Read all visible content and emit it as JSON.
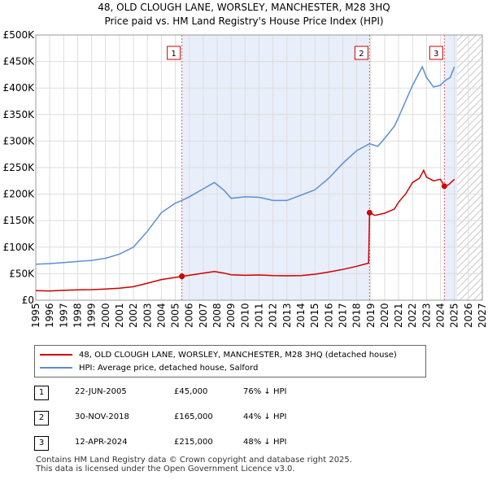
{
  "header": {
    "title_line1": "48, OLD CLOUGH LANE, WORSLEY, MANCHESTER, M28 3HQ",
    "title_line2": "Price paid vs. HM Land Registry's House Price Index (HPI)"
  },
  "chart_data": {
    "type": "line",
    "title": "48, OLD CLOUGH LANE, WORSLEY, MANCHESTER, M28 3HQ — Price paid vs. HM Land Registry's House Price Index (HPI)",
    "xlabel": "",
    "ylabel": "",
    "xlim": [
      1995,
      2027
    ],
    "ylim": [
      0,
      500000
    ],
    "x_ticks": [
      1995,
      1996,
      1997,
      1998,
      1999,
      2000,
      2001,
      2002,
      2003,
      2004,
      2005,
      2006,
      2007,
      2008,
      2009,
      2010,
      2011,
      2012,
      2013,
      2014,
      2015,
      2016,
      2017,
      2018,
      2019,
      2020,
      2021,
      2022,
      2023,
      2024,
      2025,
      2026,
      2027
    ],
    "y_ticks": [
      0,
      50000,
      100000,
      150000,
      200000,
      250000,
      300000,
      350000,
      400000,
      450000,
      500000
    ],
    "y_tick_labels": [
      "£0",
      "£50K",
      "£100K",
      "£150K",
      "£200K",
      "£250K",
      "£300K",
      "£350K",
      "£400K",
      "£450K",
      "£500K"
    ],
    "grid": true,
    "shaded_ranges": [
      [
        2005.47,
        2018.92
      ],
      [
        2024.28,
        2025.2
      ]
    ],
    "forecast_start": 2025.2,
    "series": [
      {
        "name": "48, OLD CLOUGH LANE, WORSLEY, MANCHESTER, M28 3HQ (detached house)",
        "color": "#cc0000",
        "points": [
          [
            1995,
            18000
          ],
          [
            1996,
            17500
          ],
          [
            1997,
            18500
          ],
          [
            1998,
            19500
          ],
          [
            1999,
            20000
          ],
          [
            2000,
            21000
          ],
          [
            2001,
            22500
          ],
          [
            2002,
            25500
          ],
          [
            2003,
            32000
          ],
          [
            2004,
            39000
          ],
          [
            2005,
            43000
          ],
          [
            2005.47,
            45000
          ],
          [
            2006,
            47000
          ],
          [
            2007,
            51000
          ],
          [
            2007.8,
            54000
          ],
          [
            2008.5,
            51000
          ],
          [
            2009,
            48000
          ],
          [
            2010,
            47000
          ],
          [
            2011,
            47500
          ],
          [
            2012,
            46500
          ],
          [
            2013,
            46000
          ],
          [
            2014,
            46500
          ],
          [
            2015,
            49000
          ],
          [
            2016,
            53000
          ],
          [
            2017,
            58000
          ],
          [
            2018,
            64000
          ],
          [
            2018.85,
            70000
          ],
          [
            2018.92,
            165000
          ],
          [
            2019.3,
            160000
          ],
          [
            2020,
            164000
          ],
          [
            2020.7,
            172000
          ],
          [
            2021,
            185000
          ],
          [
            2021.5,
            200000
          ],
          [
            2022,
            222000
          ],
          [
            2022.5,
            230000
          ],
          [
            2022.8,
            245000
          ],
          [
            2023,
            232000
          ],
          [
            2023.5,
            225000
          ],
          [
            2024,
            228000
          ],
          [
            2024.28,
            215000
          ],
          [
            2024.6,
            218000
          ],
          [
            2025,
            228000
          ]
        ]
      },
      {
        "name": "HPI: Average price, detached house, Salford",
        "color": "#5b8fd0",
        "points": [
          [
            1995,
            68000
          ],
          [
            1996,
            69000
          ],
          [
            1997,
            71000
          ],
          [
            1998,
            73000
          ],
          [
            1999,
            75000
          ],
          [
            2000,
            79000
          ],
          [
            2001,
            87000
          ],
          [
            2002,
            100000
          ],
          [
            2003,
            130000
          ],
          [
            2004,
            165000
          ],
          [
            2005,
            183000
          ],
          [
            2005.47,
            188000
          ],
          [
            2006,
            195000
          ],
          [
            2007,
            210000
          ],
          [
            2007.8,
            222000
          ],
          [
            2008.5,
            207000
          ],
          [
            2009,
            192000
          ],
          [
            2010,
            195000
          ],
          [
            2011,
            194000
          ],
          [
            2012,
            188000
          ],
          [
            2013,
            188000
          ],
          [
            2014,
            198000
          ],
          [
            2015,
            208000
          ],
          [
            2016,
            230000
          ],
          [
            2017,
            258000
          ],
          [
            2018,
            282000
          ],
          [
            2018.92,
            295000
          ],
          [
            2019.5,
            290000
          ],
          [
            2020,
            305000
          ],
          [
            2020.7,
            328000
          ],
          [
            2021,
            345000
          ],
          [
            2021.5,
            375000
          ],
          [
            2022,
            405000
          ],
          [
            2022.7,
            440000
          ],
          [
            2023,
            420000
          ],
          [
            2023.5,
            402000
          ],
          [
            2024,
            405000
          ],
          [
            2024.28,
            413000
          ],
          [
            2024.7,
            420000
          ],
          [
            2025,
            440000
          ]
        ]
      }
    ],
    "markers": [
      {
        "label": "1",
        "x": 2005.47,
        "y": 45000
      },
      {
        "label": "2",
        "x": 2018.92,
        "y": 165000
      },
      {
        "label": "3",
        "x": 2024.28,
        "y": 215000
      }
    ]
  },
  "legend": {
    "property_label": "48, OLD CLOUGH LANE, WORSLEY, MANCHESTER, M28 3HQ (detached house)",
    "hpi_label": "HPI: Average price, detached house, Salford",
    "property_color": "#cc0000",
    "hpi_color": "#5b8fd0"
  },
  "sales": [
    {
      "num": "1",
      "date": "22-JUN-2005",
      "price": "£45,000",
      "hpi": "76% ↓ HPI"
    },
    {
      "num": "2",
      "date": "30-NOV-2018",
      "price": "£165,000",
      "hpi": "44% ↓ HPI"
    },
    {
      "num": "3",
      "date": "12-APR-2024",
      "price": "£215,000",
      "hpi": "48% ↓ HPI"
    }
  ],
  "footer": {
    "line1": "Contains HM Land Registry data © Crown copyright and database right 2025.",
    "line2": "This data is licensed under the Open Government Licence v3.0."
  }
}
